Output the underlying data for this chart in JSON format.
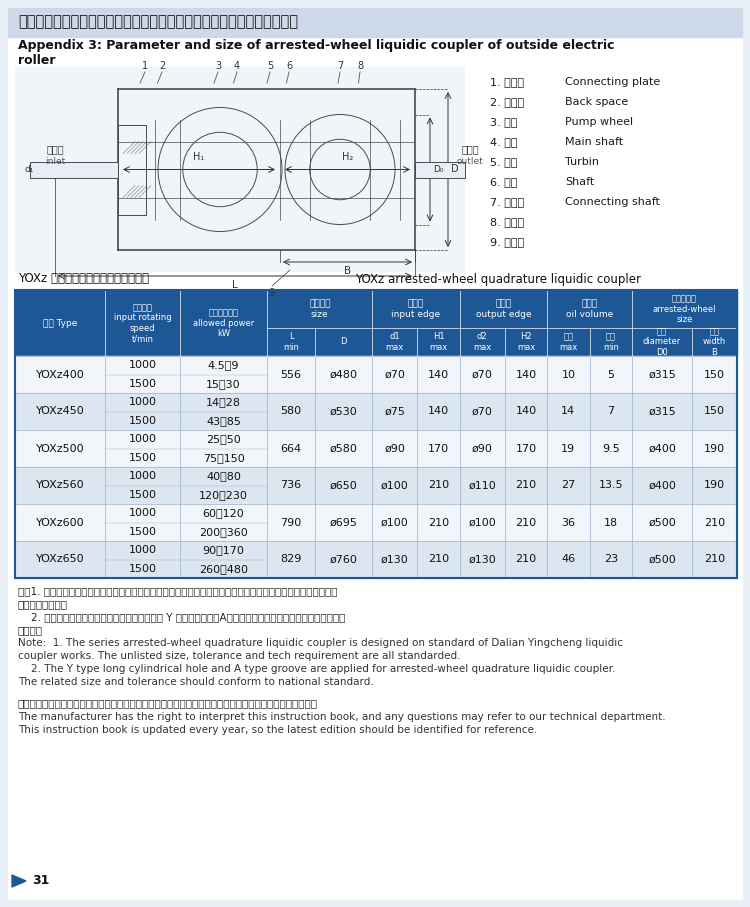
{
  "title_cn": "附录三：外装式电动滚筒配套带制动轮式液力偶合器基本参数及主要尺寸",
  "title_en1": "Appendix 3: Parameter and size of arrested-wheel liquidic coupler of outside electric",
  "title_en2": "roller",
  "subtitle_cn": "YOXz 型带制动轮式限矩型液力偶合器",
  "subtitle_en": "YOXz arrested-wheel quadrature liquidic coupler",
  "legend": [
    [
      "1. 连接盘",
      "Connecting plate"
    ],
    [
      "2. 后辅腔",
      "Back space"
    ],
    [
      "3. 泵轮",
      "Pump wheel"
    ],
    [
      "4. 主轴",
      "Main shaft"
    ],
    [
      "5. 涅轮",
      "Turbin"
    ],
    [
      "6. 外壳",
      "Shaft"
    ],
    [
      "7. 连接轴",
      "Connecting shaft"
    ],
    [
      "8. 制动轮",
      ""
    ],
    [
      "9. 易熔塞",
      ""
    ]
  ],
  "inlet_cn": "输入端",
  "inlet_en": "inlet",
  "outlet_cn": "输出端",
  "outlet_en": "outlet",
  "rows": [
    {
      "type": "YOXz400",
      "speeds": [
        "1000",
        "1500"
      ],
      "powers": [
        "4.5～9",
        "15～30"
      ],
      "L": "556",
      "D": "ø480",
      "d1": "ø70",
      "H1": "140",
      "d2": "ø70",
      "H2": "140",
      "max_oil": "10",
      "min_oil": "5",
      "D0": "ø315",
      "B": "150"
    },
    {
      "type": "YOXz450",
      "speeds": [
        "1000",
        "1500"
      ],
      "powers": [
        "14～28",
        "43～85"
      ],
      "L": "580",
      "D": "ø530",
      "d1": "ø75",
      "H1": "140",
      "d2": "ø70",
      "H2": "140",
      "max_oil": "14",
      "min_oil": "7",
      "D0": "ø315",
      "B": "150"
    },
    {
      "type": "YOXz500",
      "speeds": [
        "1000",
        "1500"
      ],
      "powers": [
        "25～50",
        "75～150"
      ],
      "L": "664",
      "D": "ø580",
      "d1": "ø90",
      "H1": "170",
      "d2": "ø90",
      "H2": "170",
      "max_oil": "19",
      "min_oil": "9.5",
      "D0": "ø400",
      "B": "190"
    },
    {
      "type": "YOXz560",
      "speeds": [
        "1000",
        "1500"
      ],
      "powers": [
        "40～80",
        "120～230"
      ],
      "L": "736",
      "D": "ø650",
      "d1": "ø100",
      "H1": "210",
      "d2": "ø110",
      "H2": "210",
      "max_oil": "27",
      "min_oil": "13.5",
      "D0": "ø400",
      "B": "190"
    },
    {
      "type": "YOXz600",
      "speeds": [
        "1000",
        "1500"
      ],
      "powers": [
        "60～120",
        "200～360"
      ],
      "L": "790",
      "D": "ø695",
      "d1": "ø100",
      "H1": "210",
      "d2": "ø100",
      "H2": "210",
      "max_oil": "36",
      "min_oil": "18",
      "D0": "ø500",
      "B": "210"
    },
    {
      "type": "YOXz650",
      "speeds": [
        "1000",
        "1500"
      ],
      "powers": [
        "90～170",
        "260～480"
      ],
      "L": "829",
      "D": "ø760",
      "d1": "ø130",
      "H1": "210",
      "d2": "ø130",
      "H2": "210",
      "max_oil": "46",
      "min_oil": "23",
      "D0": "ø500",
      "B": "210"
    }
  ],
  "hdr_type_cn": "型号",
  "hdr_type_en": "Type",
  "hdr_speed_cn": "输入转矩",
  "hdr_speed_en": "input rotating\nspeed\nt/min",
  "hdr_power_cn": "许用功率范围",
  "hdr_power_en": "allowed power\nkW",
  "hdr_size_cn": "外形尺寸",
  "hdr_size_en": "size",
  "hdr_input_cn": "输入端",
  "hdr_input_en": "input edge",
  "hdr_output_cn": "输出端",
  "hdr_output_en": "output edge",
  "hdr_oil_cn": "充油量",
  "hdr_oil_en": "oil volume",
  "hdr_brake_cn": "制动轮尺寸",
  "hdr_brake_en": "arrested-wheel\nsize",
  "hdr_L": "L\nmin",
  "hdr_D": "D",
  "hdr_d1": "d1\nmax",
  "hdr_H1": "H1\nmax",
  "hdr_d2": "d2\nmax",
  "hdr_H2": "H2\nmax",
  "hdr_maxoil_cn": "最大",
  "hdr_maxoil_en": "max",
  "hdr_minoil_cn": "最小",
  "hdr_minoil_en": "min",
  "hdr_D0_cn": "直径",
  "hdr_D0_en": "diameter\nD0",
  "hdr_B_cn": "宽度",
  "hdr_B_en": "width\nB",
  "note_cn1": "注：1. 本系列带制动轮式限矩型液力偶合器按大连营城液力偶合器厂标准制作，所有未注尺寸，公差及技术要求均",
  "note_cn2": "需符合标准要求。",
  "note_cn3": "    2. 本系列带制动轮式限矩型液力偶合器均采用 Y 型长圆柱轴孔，A型键槽型式，键槽尺寸及公差均需按国家标",
  "note_cn4": "准制作。",
  "note_en1": "Note:  1. The series arrested-wheel quadrature liquidic coupler is designed on standard of Dalian Yingcheng liquidic",
  "note_en2": "coupler works. The unlisted size, tolerance and tech requirement are all standarded.",
  "note_en3": "    2. The Y type long cylindrical hole and A type groove are applied for arrested-wheel quadrature liquidic coupler.",
  "note_en4": "The related size and tolerance should conform to national standard.",
  "footer_cn": "本厂拥有对本说明书的解释权，若有疑问请与本厂技术部门联系。一般每年一版，选用时请以最新版本为准。",
  "footer_en1": "The manufacturer has the right to interpret this instruction book, and any questions may refer to our technical department.",
  "footer_en2": "This instruction book is updated every year, so the latest edition should be identified for reference.",
  "page_num": "31",
  "bg_color": "#e8eef5",
  "page_bg": "#e8eef5",
  "content_bg": "#ffffff",
  "title_bg": "#cdd9e8",
  "table_hdr_bg": "#1e5796",
  "table_hdr_fg": "#ffffff",
  "row_bg_odd": "#f2f6fb",
  "row_bg_even": "#dce6f0",
  "table_border": "#1e5796",
  "text_dark": "#1a1a1a",
  "text_mid": "#333333",
  "text_light": "#555555"
}
